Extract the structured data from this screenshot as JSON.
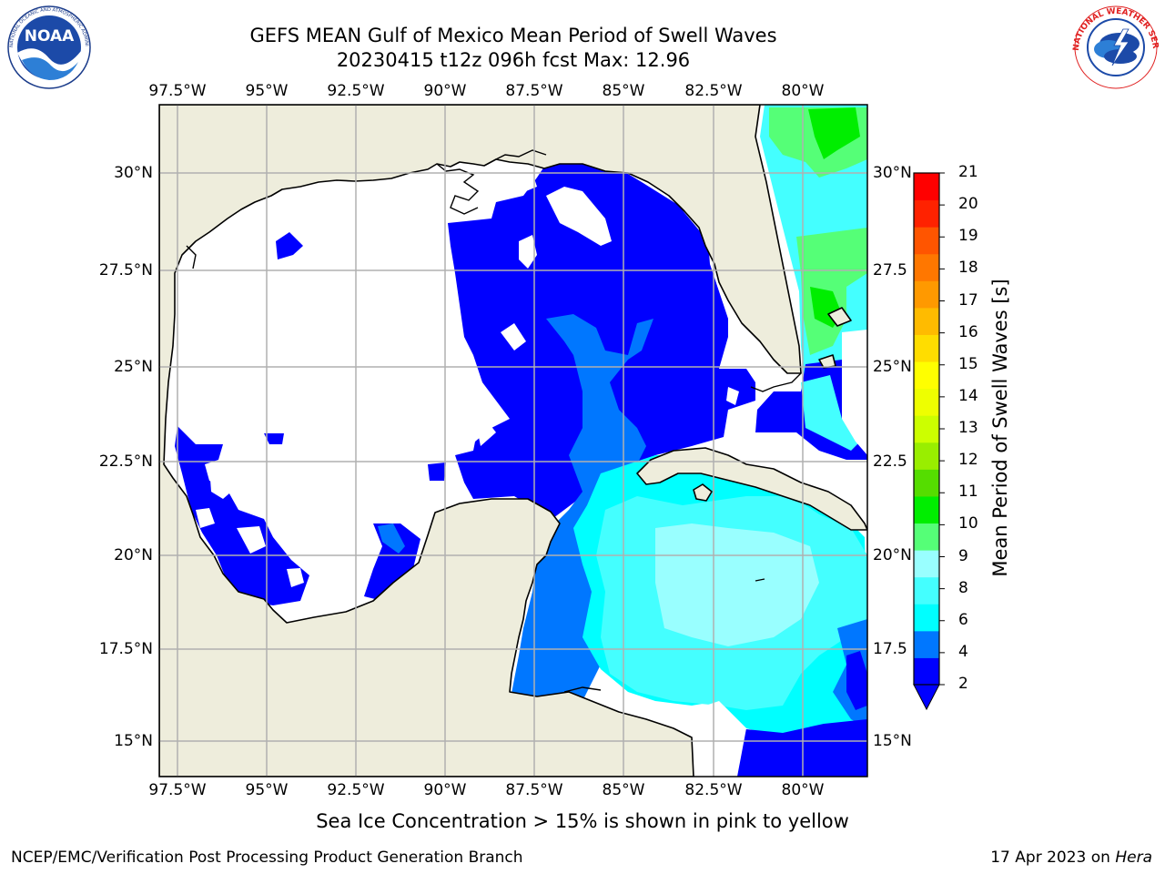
{
  "header": {
    "title": "GEFS MEAN Gulf of Mexico Mean Period of Swell Waves",
    "subtitle": "20230415 t12z 096h fcst   Max: 12.96"
  },
  "logos": {
    "left": "NOAA",
    "left_ring": "NATIONAL OCEANIC AND ATMOSPHERIC ADMINISTRATION · U.S. DEPARTMENT OF COMMERCE",
    "right_ring": "NATIONAL WEATHER SERVICE"
  },
  "map": {
    "lon_labels": [
      "97.5°W",
      "95°W",
      "92.5°W",
      "90°W",
      "87.5°W",
      "85°W",
      "82.5°W",
      "80°W"
    ],
    "lat_labels_left": [
      "30°N",
      "27.5°N",
      "25°N",
      "22.5°N",
      "20°N",
      "17.5°N",
      "15°N"
    ],
    "lat_labels_right": [
      "30°N",
      "27.5",
      "25°N",
      "22.5",
      "20°N",
      "17.5",
      "15°N"
    ],
    "colors": {
      "land": "#eeeddc",
      "ocean_unshaded": "#ffffff",
      "grid": "#b0b0b0",
      "coast": "#000000"
    }
  },
  "colorbar": {
    "label": "Mean Period of Swell Waves [s]",
    "ticks": [
      "21",
      "20",
      "19",
      "18",
      "17",
      "16",
      "15",
      "14",
      "13",
      "12",
      "11",
      "10",
      "9",
      "8",
      "6",
      "4",
      "2"
    ],
    "colors": [
      "#0000ff",
      "#0077ff",
      "#00ffff",
      "#44ffff",
      "#99ffff",
      "#55ff77",
      "#00ee00",
      "#55dd00",
      "#99ee00",
      "#ccff00",
      "#eeff00",
      "#ffff00",
      "#ffdd00",
      "#ffbb00",
      "#ff9900",
      "#ff7700",
      "#ff5500",
      "#ff2200",
      "#ff0000"
    ]
  },
  "note": "Sea Ice Concentration > 15% is shown in pink to yellow",
  "footer": {
    "left": "NCEP/EMC/Verification Post Processing Product Generation Branch",
    "right_prefix": "17 Apr 2023 on ",
    "right_host": "Hera"
  }
}
